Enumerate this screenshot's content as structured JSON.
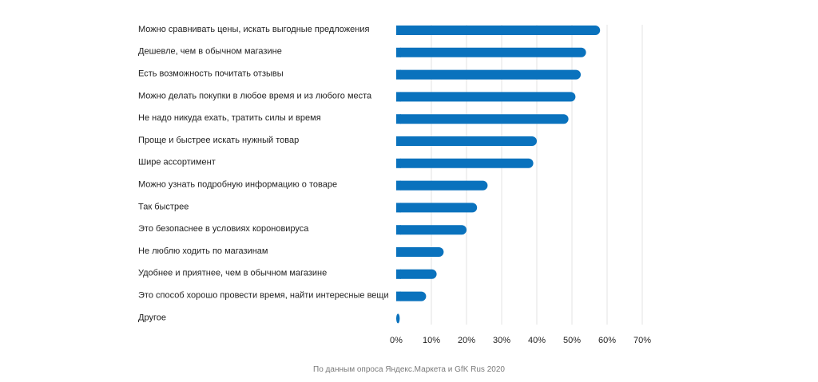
{
  "chart_data": {
    "type": "bar",
    "orientation": "horizontal",
    "categories": [
      "Можно сравнивать цены, искать выгодные предложения",
      "Дешевле, чем в обычном магазине",
      "Есть возможность почитать отзывы",
      "Можно делать покупки в любое время и из любого места",
      "Не надо никуда ехать, тратить силы и время",
      "Проще и быстрее искать нужный товар",
      "Шире ассортимент",
      "Можно узнать подробную информацию о товаре",
      "Так быстрее",
      "Это безопаснее в условиях короновируса",
      "Не люблю ходить по магазинам",
      "Удобнее и приятнее, чем в обычном магазине",
      "Это способ хорошо провести время, найти интересные вещи",
      "Другое"
    ],
    "values": [
      58,
      54,
      52.5,
      51,
      49,
      40,
      39,
      26,
      23,
      20,
      13.5,
      11.5,
      8.5,
      1
    ],
    "xlim": [
      0,
      70
    ],
    "xticks": [
      "0%",
      "10%",
      "20%",
      "30%",
      "40%",
      "50%",
      "60%",
      "70%"
    ],
    "grid": "vertical",
    "bar_color": "#0a72bd",
    "grid_color": "#e3e3e3"
  },
  "source_note": "По данным опроса Яндекс.Маркета и GfK Rus 2020"
}
